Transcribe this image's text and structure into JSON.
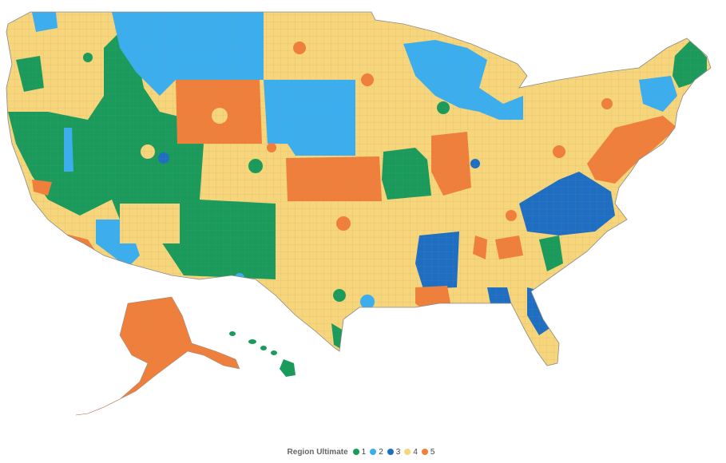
{
  "legend": {
    "title": "Region Ultimate",
    "items": [
      {
        "label": "1",
        "color": "#1a9b5b"
      },
      {
        "label": "2",
        "color": "#3aaeef"
      },
      {
        "label": "3",
        "color": "#1e6fc4"
      },
      {
        "label": "4",
        "color": "#f7d57a"
      },
      {
        "label": "5",
        "color": "#f07f3c"
      }
    ]
  },
  "colors": {
    "county_border": "#8a8a8a",
    "background": "#ffffff"
  }
}
